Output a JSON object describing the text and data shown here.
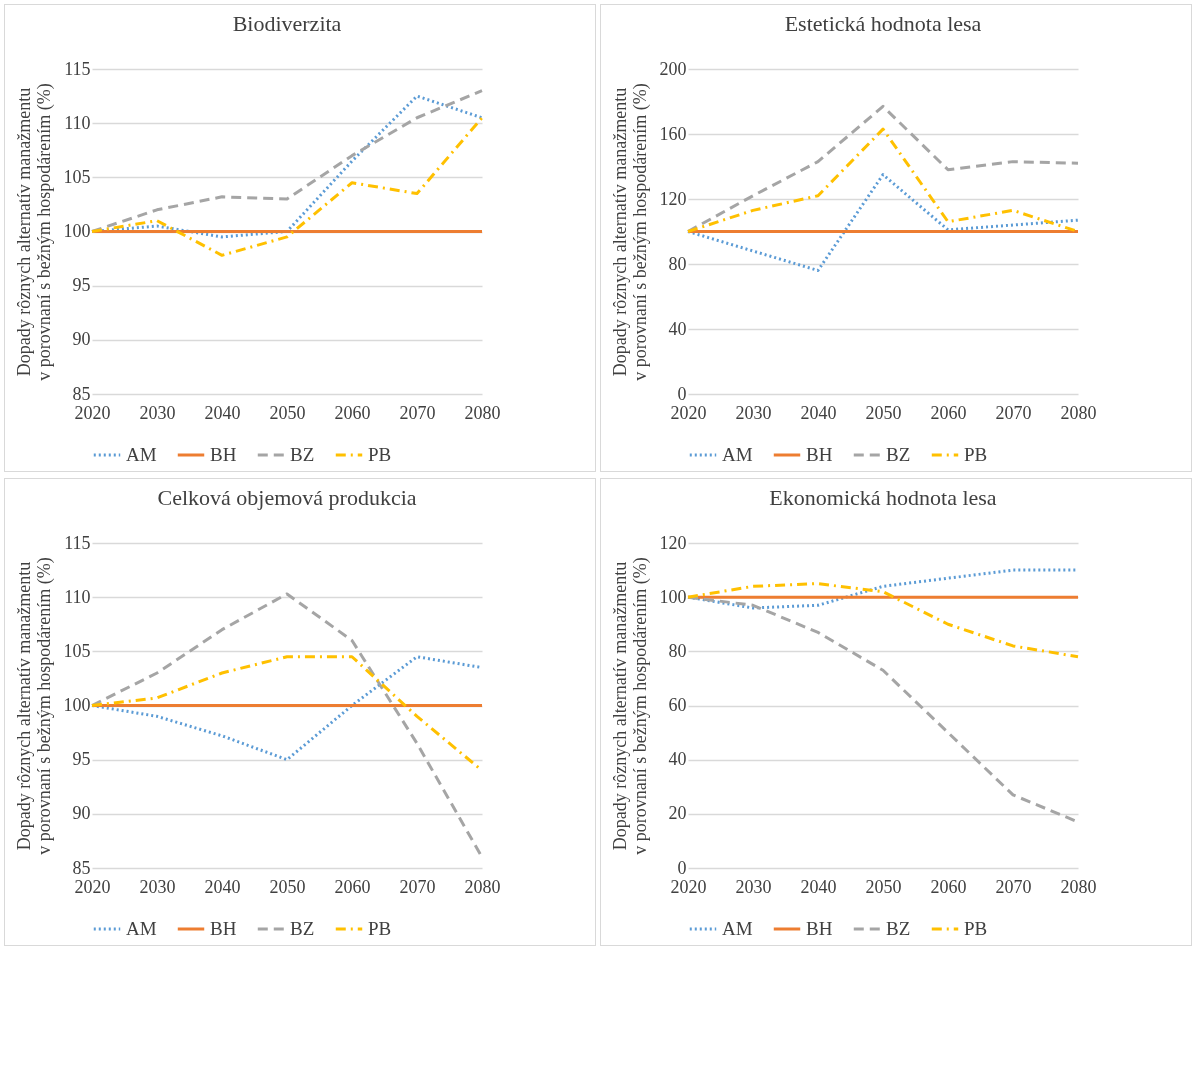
{
  "chart_data": [
    {
      "type": "line",
      "title": "Biodiverzita",
      "ylabel": "Dopady rôznych alternatív  manažmentu v porovnaní s bežným hospodárením (%)",
      "categories": [
        "2020",
        "2030",
        "2040",
        "2050",
        "2060",
        "2070",
        "2080"
      ],
      "ylim": [
        85,
        115
      ],
      "yticks": [
        85,
        90,
        95,
        100,
        105,
        110,
        115
      ],
      "grid": "y",
      "legend": "bottom",
      "marker": "none",
      "series": [
        {
          "name": "AM",
          "color": "#5b9bd5",
          "line_style": "dotted",
          "values": [
            100,
            100.5,
            99.5,
            100,
            106.5,
            112.5,
            110.5
          ]
        },
        {
          "name": "BH",
          "color": "#ed7d31",
          "line_style": "solid",
          "values": [
            100,
            100,
            100,
            100,
            100,
            100,
            100
          ]
        },
        {
          "name": "BZ",
          "color": "#a5a5a5",
          "line_style": "dashed",
          "values": [
            100,
            102,
            103.2,
            103,
            107,
            110.5,
            113
          ]
        },
        {
          "name": "PB",
          "color": "#ffc000",
          "line_style": "dashdot",
          "values": [
            100,
            101,
            97.8,
            99.5,
            104.5,
            103.5,
            110.5
          ]
        }
      ]
    },
    {
      "type": "line",
      "title": "Estetická  hodnota lesa",
      "ylabel": "Dopady rôznych alternatív  manažmentu v porovnaní s bežným hospodárením (%)",
      "categories": [
        "2020",
        "2030",
        "2040",
        "2050",
        "2060",
        "2070",
        "2080"
      ],
      "ylim": [
        0,
        200
      ],
      "yticks": [
        0,
        40,
        80,
        120,
        160,
        200
      ],
      "grid": "y",
      "legend": "bottom",
      "marker": "none",
      "series": [
        {
          "name": "AM",
          "color": "#5b9bd5",
          "line_style": "dotted",
          "values": [
            100,
            88,
            76,
            135,
            101,
            104,
            107
          ]
        },
        {
          "name": "BH",
          "color": "#ed7d31",
          "line_style": "solid",
          "values": [
            100,
            100,
            100,
            100,
            100,
            100,
            100
          ]
        },
        {
          "name": "BZ",
          "color": "#a5a5a5",
          "line_style": "dashed",
          "values": [
            100,
            122,
            143,
            177,
            138,
            143,
            142
          ]
        },
        {
          "name": "PB",
          "color": "#ffc000",
          "line_style": "dashdot",
          "values": [
            100,
            113,
            122,
            163,
            106,
            113,
            100
          ]
        }
      ]
    },
    {
      "type": "line",
      "title": "Celková objemová produkcia",
      "ylabel": "Dopady rôznych alternatív  manažmentu v porovnaní s bežným hospodárením (%)",
      "categories": [
        "2020",
        "2030",
        "2040",
        "2050",
        "2060",
        "2070",
        "2080"
      ],
      "ylim": [
        85,
        115
      ],
      "yticks": [
        85,
        90,
        95,
        100,
        105,
        110,
        115
      ],
      "grid": "y",
      "legend": "bottom",
      "marker": "none",
      "series": [
        {
          "name": "AM",
          "color": "#5b9bd5",
          "line_style": "dotted",
          "values": [
            100,
            99,
            97.2,
            95,
            100,
            104.5,
            103.5
          ]
        },
        {
          "name": "BH",
          "color": "#ed7d31",
          "line_style": "solid",
          "values": [
            100,
            100,
            100,
            100,
            100,
            100,
            100
          ]
        },
        {
          "name": "BZ",
          "color": "#a5a5a5",
          "line_style": "dashed",
          "values": [
            100,
            103,
            107,
            110.3,
            106,
            96.5,
            86
          ]
        },
        {
          "name": "PB",
          "color": "#ffc000",
          "line_style": "dashdot",
          "values": [
            100,
            100.7,
            103,
            104.5,
            104.5,
            99,
            94
          ]
        }
      ]
    },
    {
      "type": "line",
      "title": "Ekonomická hodnota lesa",
      "ylabel": "Dopady rôznych alternatív  manažmentu v porovnaní s bežným hospodárením (%)",
      "categories": [
        "2020",
        "2030",
        "2040",
        "2050",
        "2060",
        "2070",
        "2080"
      ],
      "ylim": [
        0,
        120
      ],
      "yticks": [
        0,
        20,
        40,
        60,
        80,
        100,
        120
      ],
      "grid": "y",
      "legend": "bottom",
      "marker": "none",
      "series": [
        {
          "name": "AM",
          "color": "#5b9bd5",
          "line_style": "dotted",
          "values": [
            100,
            96,
            97,
            104,
            107,
            110,
            110
          ]
        },
        {
          "name": "BH",
          "color": "#ed7d31",
          "line_style": "solid",
          "values": [
            100,
            100,
            100,
            100,
            100,
            100,
            100
          ]
        },
        {
          "name": "BZ",
          "color": "#a5a5a5",
          "line_style": "dashed",
          "values": [
            100,
            97,
            87,
            73,
            50,
            27,
            17
          ]
        },
        {
          "name": "PB",
          "color": "#ffc000",
          "line_style": "dashdot",
          "values": [
            100,
            104,
            105,
            102,
            90,
            82,
            78
          ]
        }
      ]
    }
  ]
}
